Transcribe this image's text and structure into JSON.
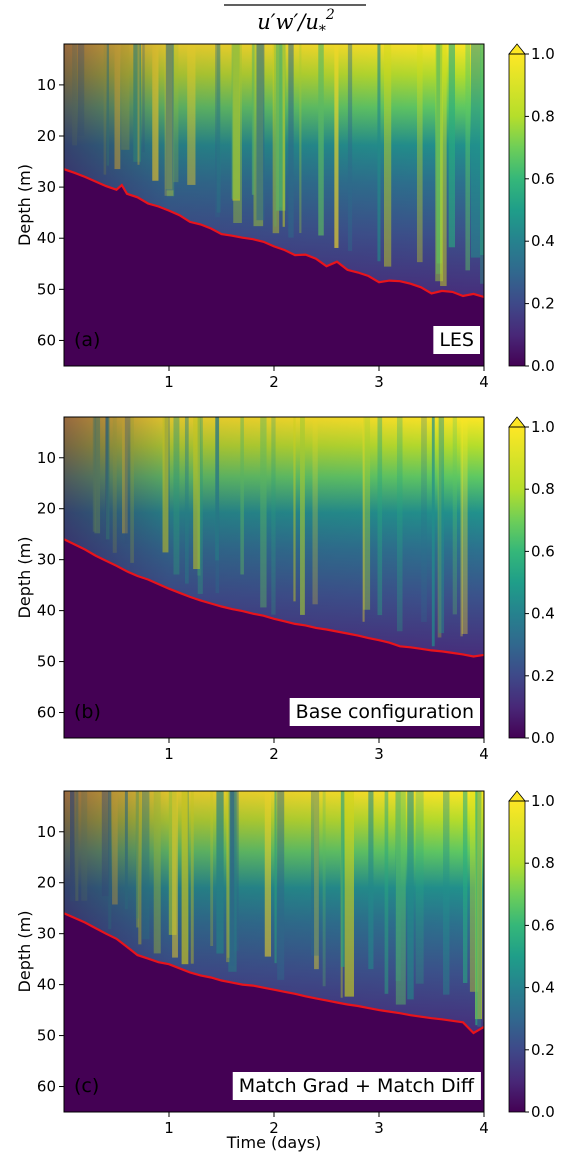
{
  "figure_title": "u'w'/u*²",
  "chart_data": [
    {
      "type": "heatmap",
      "panel_tag": "(a)",
      "corner_label": "LES",
      "xlabel": "",
      "ylabel": "Depth (m)",
      "x_ticks": [
        1,
        2,
        3,
        4
      ],
      "y_ticks": [
        10,
        20,
        30,
        40,
        50,
        60
      ],
      "xlim": [
        0,
        4
      ],
      "ylim": [
        65,
        2
      ],
      "colorbar": {
        "ticks": [
          0.0,
          0.2,
          0.4,
          0.6,
          0.8,
          1.0
        ],
        "range": [
          0,
          1
        ],
        "extend": "max",
        "colormap": "viridis"
      },
      "line_color": "#e8141b",
      "boundary_line": {
        "x": [
          0.0,
          0.1,
          0.2,
          0.3,
          0.4,
          0.5,
          0.55,
          0.6,
          0.7,
          0.8,
          0.9,
          1.0,
          1.1,
          1.2,
          1.3,
          1.4,
          1.5,
          1.6,
          1.7,
          1.8,
          1.9,
          2.0,
          2.1,
          2.2,
          2.3,
          2.4,
          2.5,
          2.6,
          2.7,
          2.8,
          2.9,
          3.0,
          3.1,
          3.2,
          3.3,
          3.4,
          3.5,
          3.6,
          3.7,
          3.8,
          3.9,
          4.0
        ],
        "y": [
          26.5,
          27.2,
          28.0,
          28.9,
          29.8,
          30.5,
          29.6,
          31.3,
          32.0,
          33.2,
          33.8,
          34.6,
          35.5,
          36.8,
          37.3,
          38.1,
          39.2,
          39.5,
          39.9,
          40.2,
          40.7,
          41.6,
          42.3,
          43.3,
          43.2,
          44.0,
          45.5,
          44.6,
          46.2,
          46.7,
          47.4,
          48.6,
          48.3,
          48.4,
          48.9,
          49.6,
          50.8,
          50.3,
          50.5,
          51.3,
          50.9,
          51.5
        ]
      }
    },
    {
      "type": "heatmap",
      "panel_tag": "(b)",
      "corner_label": "Base configuration",
      "xlabel": "",
      "ylabel": "Depth (m)",
      "x_ticks": [
        1,
        2,
        3,
        4
      ],
      "y_ticks": [
        10,
        20,
        30,
        40,
        50,
        60
      ],
      "xlim": [
        0,
        4
      ],
      "ylim": [
        65,
        2
      ],
      "colorbar": {
        "ticks": [
          0.0,
          0.2,
          0.4,
          0.6,
          0.8,
          1.0
        ],
        "range": [
          0,
          1
        ],
        "extend": "max",
        "colormap": "viridis"
      },
      "line_color": "#e8141b",
      "boundary_line": {
        "x": [
          0.0,
          0.1,
          0.2,
          0.3,
          0.4,
          0.5,
          0.6,
          0.7,
          0.8,
          0.9,
          1.0,
          1.1,
          1.2,
          1.3,
          1.4,
          1.5,
          1.6,
          1.7,
          1.8,
          1.9,
          2.0,
          2.1,
          2.2,
          2.3,
          2.4,
          2.5,
          2.6,
          2.7,
          2.8,
          2.9,
          3.0,
          3.1,
          3.2,
          3.3,
          3.4,
          3.5,
          3.6,
          3.7,
          3.8,
          3.9,
          4.0
        ],
        "y": [
          26.0,
          27.0,
          28.0,
          29.2,
          30.2,
          31.2,
          32.3,
          33.2,
          33.9,
          34.8,
          35.7,
          36.5,
          37.3,
          38.0,
          38.6,
          39.2,
          39.7,
          40.1,
          40.6,
          41.0,
          41.6,
          42.1,
          42.6,
          42.9,
          43.4,
          43.7,
          44.1,
          44.5,
          44.9,
          45.4,
          45.8,
          46.3,
          47.0,
          47.2,
          47.5,
          47.8,
          48.0,
          48.3,
          48.6,
          49.0,
          48.7
        ]
      }
    },
    {
      "type": "heatmap",
      "panel_tag": "(c)",
      "corner_label": "Match Grad + Match Diff",
      "xlabel": "Time (days)",
      "ylabel": "Depth (m)",
      "x_ticks": [
        1,
        2,
        3,
        4
      ],
      "y_ticks": [
        10,
        20,
        30,
        40,
        50,
        60
      ],
      "xlim": [
        0,
        4
      ],
      "ylim": [
        65,
        2
      ],
      "colorbar": {
        "ticks": [
          0.0,
          0.2,
          0.4,
          0.6,
          0.8,
          1.0
        ],
        "range": [
          0,
          1
        ],
        "extend": "max",
        "colormap": "viridis"
      },
      "line_color": "#e8141b",
      "boundary_line": {
        "x": [
          0.0,
          0.1,
          0.2,
          0.3,
          0.4,
          0.5,
          0.6,
          0.7,
          0.8,
          0.9,
          1.0,
          1.1,
          1.2,
          1.3,
          1.4,
          1.5,
          1.6,
          1.7,
          1.8,
          1.9,
          2.0,
          2.1,
          2.2,
          2.3,
          2.4,
          2.5,
          2.6,
          2.7,
          2.8,
          2.9,
          3.0,
          3.1,
          3.2,
          3.3,
          3.4,
          3.5,
          3.6,
          3.7,
          3.8,
          3.9,
          4.0
        ],
        "y": [
          26.0,
          26.9,
          27.8,
          28.9,
          30.0,
          31.0,
          32.6,
          34.2,
          34.9,
          35.6,
          36.0,
          36.8,
          37.6,
          38.2,
          38.6,
          39.2,
          39.6,
          40.0,
          40.2,
          40.6,
          41.0,
          41.4,
          41.8,
          42.3,
          42.7,
          43.1,
          43.5,
          43.9,
          44.2,
          44.6,
          45.0,
          45.3,
          45.6,
          46.0,
          46.3,
          46.6,
          46.8,
          47.1,
          47.4,
          49.5,
          48.3
        ]
      }
    }
  ]
}
